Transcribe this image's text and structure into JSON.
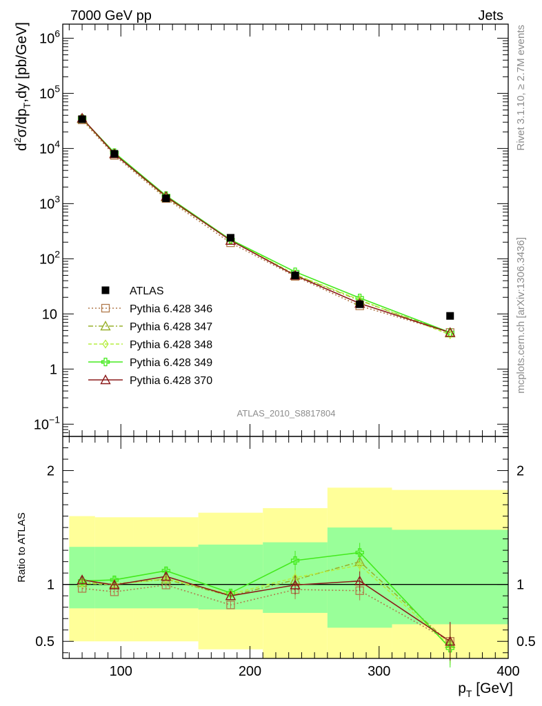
{
  "header": {
    "left": "7000 GeV pp",
    "right": "Jets"
  },
  "side_text": {
    "top": "Rivet 3.1.10, ≥ 2.7M events",
    "bottom": "mcplots.cern.ch [arXiv:1306.3436]"
  },
  "analysis_label": "ATLAS_2010_S8817804",
  "chart_data": [
    {
      "type": "line",
      "panel": "main",
      "yscale": "log",
      "ylabel_parts": {
        "d": "d",
        "sup2": "2",
        "sigma_dp": "σ/dp",
        "subT": "T",
        "rest": ",dy [pb/GeV]"
      },
      "xlim": [
        55,
        400
      ],
      "ylim": [
        0.06,
        1800000
      ],
      "yticks": [
        {
          "value": 0.1,
          "base": "10",
          "exp": "−1"
        },
        {
          "value": 1,
          "label": "1"
        },
        {
          "value": 10,
          "label": "10"
        },
        {
          "value": 100,
          "base": "10",
          "exp": "2"
        },
        {
          "value": 1000,
          "base": "10",
          "exp": "3"
        },
        {
          "value": 10000,
          "base": "10",
          "exp": "4"
        },
        {
          "value": 100000,
          "base": "10",
          "exp": "5"
        },
        {
          "value": 1000000,
          "base": "10",
          "exp": "6"
        }
      ],
      "x": [
        70,
        95,
        135,
        185,
        235,
        285,
        355
      ],
      "xedges": [
        60,
        80,
        110,
        160,
        210,
        260,
        310,
        400
      ],
      "data_series": {
        "name": "ATLAS",
        "values": [
          34000,
          8000,
          1250,
          240,
          50,
          15,
          9.2
        ],
        "color": "#000000"
      },
      "series": [
        {
          "name": "Pythia 6.428 346",
          "values": [
            33000,
            7500,
            1240,
            195,
            48,
            14,
            4.6
          ],
          "color": "#b0794a",
          "dash": "2,3",
          "marker": "square"
        },
        {
          "name": "Pythia 6.428 347",
          "values": [
            34500,
            8000,
            1310,
            215,
            51,
            17.5,
            4.5
          ],
          "color": "#98b02b",
          "dash": "7,3,2,3",
          "marker": "triangle"
        },
        {
          "name": "Pythia 6.428 348",
          "values": [
            34500,
            8000,
            1320,
            220,
            52,
            18,
            4.2
          ],
          "color": "#b5ee3e",
          "dash": "5,3",
          "marker": "diamond"
        },
        {
          "name": "Pythia 6.428 349",
          "values": [
            35000,
            8400,
            1400,
            222,
            58,
            19.5,
            4.6
          ],
          "color": "#43ea1c",
          "dash": "",
          "marker": "cross"
        },
        {
          "name": "Pythia 6.428 370",
          "values": [
            35500,
            8000,
            1350,
            215,
            50,
            15.5,
            4.6
          ],
          "color": "#8b1a1a",
          "dash": "",
          "marker": "triangle"
        }
      ]
    },
    {
      "type": "line",
      "panel": "ratio",
      "ylabel": "Ratio to ATLAS",
      "xlabel_parts": {
        "p": "p",
        "subT": "T",
        "rest": " [GeV]"
      },
      "xlim": [
        55,
        400
      ],
      "ylim": [
        0.35,
        2.3
      ],
      "xticks": [
        100,
        200,
        300,
        400
      ],
      "yticks": [
        0.5,
        1,
        2
      ],
      "xedges": [
        60,
        80,
        110,
        160,
        210,
        260,
        310,
        400
      ],
      "band_inner": [
        [
          0.79,
          1.33
        ],
        [
          0.79,
          1.33
        ],
        [
          0.79,
          1.33
        ],
        [
          0.78,
          1.35
        ],
        [
          0.75,
          1.37
        ],
        [
          0.62,
          1.5
        ],
        [
          0.65,
          1.48
        ]
      ],
      "band_outer": [
        [
          0.5,
          1.6
        ],
        [
          0.5,
          1.59
        ],
        [
          0.5,
          1.59
        ],
        [
          0.43,
          1.63
        ],
        [
          0.35,
          1.67
        ],
        [
          0.35,
          1.85
        ],
        [
          0.35,
          1.83
        ]
      ],
      "colors": {
        "inner": "#99ff99",
        "outer": "#ffff99"
      },
      "x": [
        70,
        95,
        135,
        185,
        235,
        285,
        355
      ],
      "series": [
        {
          "name": "Pythia 6.428 346",
          "values": [
            0.965,
            0.935,
            0.995,
            0.82,
            0.955,
            0.945,
            0.5
          ],
          "color": "#b0794a",
          "dash": "2,3",
          "marker": "square"
        },
        {
          "name": "Pythia 6.428 347",
          "values": [
            1.015,
            1.005,
            1.045,
            0.9,
            1.04,
            1.2,
            0.48
          ],
          "color": "#98b02b",
          "dash": "7,3,2,3",
          "marker": "triangle"
        },
        {
          "name": "Pythia 6.428 348",
          "values": [
            1.01,
            1.0,
            1.05,
            0.915,
            1.06,
            1.17,
            0.46
          ],
          "color": "#b5ee3e",
          "dash": "5,3",
          "marker": "diamond"
        },
        {
          "name": "Pythia 6.428 349",
          "values": [
            1.03,
            1.04,
            1.12,
            0.925,
            1.21,
            1.28,
            0.44
          ],
          "color": "#43ea1c",
          "dash": "",
          "marker": "cross"
        },
        {
          "name": "Pythia 6.428 370",
          "values": [
            1.04,
            0.995,
            1.07,
            0.9,
            0.995,
            1.03,
            0.5
          ],
          "color": "#8b1a1a",
          "dash": "",
          "marker": "triangle"
        }
      ]
    }
  ]
}
